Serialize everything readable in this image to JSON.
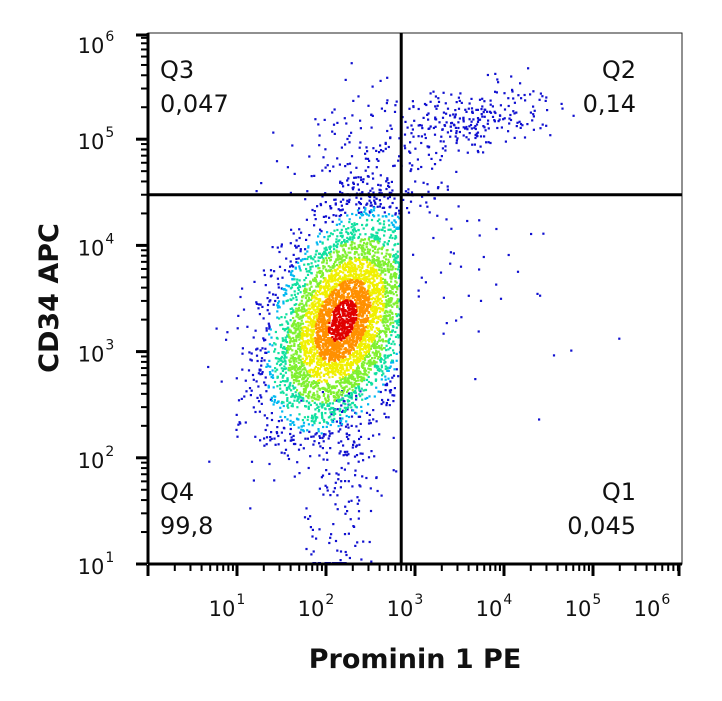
{
  "chart_data": {
    "type": "scatter",
    "style": "flow cytometry density dot plot",
    "xlabel": "Prominin 1 PE",
    "ylabel": "CD34 APC",
    "x_scale": "log",
    "y_scale": "log",
    "xlim": [
      1,
      1000000
    ],
    "ylim": [
      10,
      1000000
    ],
    "x_ticks": [
      {
        "base": "10",
        "exp": "1",
        "value": 10
      },
      {
        "base": "10",
        "exp": "2",
        "value": 100
      },
      {
        "base": "10",
        "exp": "3",
        "value": 1000
      },
      {
        "base": "10",
        "exp": "4",
        "value": 10000
      },
      {
        "base": "10",
        "exp": "5",
        "value": 100000
      },
      {
        "base": "10",
        "exp": "6",
        "value": 1000000
      }
    ],
    "y_ticks": [
      {
        "base": "10",
        "exp": "1",
        "value": 10
      },
      {
        "base": "10",
        "exp": "2",
        "value": 100
      },
      {
        "base": "10",
        "exp": "3",
        "value": 1000
      },
      {
        "base": "10",
        "exp": "4",
        "value": 10000
      },
      {
        "base": "10",
        "exp": "5",
        "value": 100000
      },
      {
        "base": "10",
        "exp": "6",
        "value": 1000000
      }
    ],
    "gates": {
      "x": 700,
      "y": 30000
    },
    "quadrants": [
      {
        "name": "Q3",
        "value": "0,047"
      },
      {
        "name": "Q2",
        "value": "0,14"
      },
      {
        "name": "Q4",
        "value": "99,8"
      },
      {
        "name": "Q1",
        "value": "0,045"
      }
    ],
    "population": {
      "center": [
        150,
        2000
      ],
      "peak_density_color": "#e00000",
      "low_density_color": "#1a1adb"
    },
    "colors": {
      "scale": [
        "#1010d0",
        "#1a60f0",
        "#00b8f0",
        "#10e0a0",
        "#80f030",
        "#f0f000",
        "#ff9000",
        "#e00000"
      ],
      "axis": "#000000"
    }
  }
}
